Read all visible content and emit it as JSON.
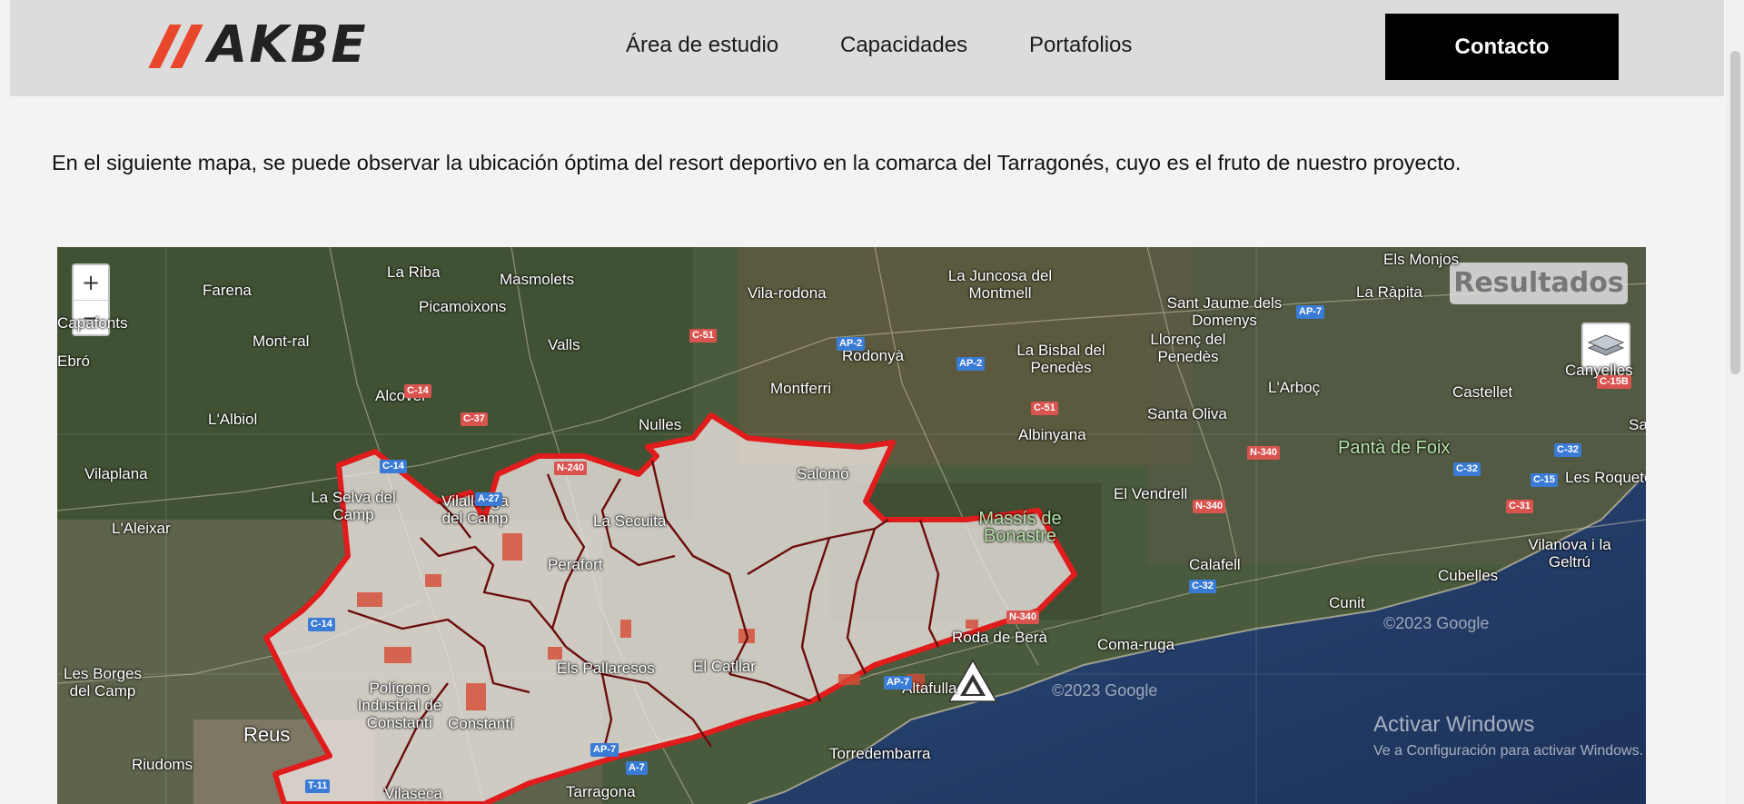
{
  "header": {
    "logo_text": "AKBE",
    "nav": [
      {
        "label": "Área de estudio"
      },
      {
        "label": "Capacidades"
      },
      {
        "label": "Portafolios"
      }
    ],
    "contact_label": "Contacto"
  },
  "intro_text": "En el siguiente mapa, se puede observar la ubicación óptima del resort deportivo en la comarca del Tarragonés, cuyo es el fruto de nuestro proyecto.",
  "map": {
    "zoom_in": "+",
    "zoom_out": "−",
    "results_label": "Resultados",
    "places": [
      "Farena",
      "La Riba",
      "Masmolets",
      "Vila-rodona",
      "La Juncosa del Montmell",
      "Els Monjos",
      "La Ràpita",
      "Capafonts",
      "Picamoixons",
      "Mont-ral",
      "Sant Jaume dels Domenys",
      "Valls",
      "Rodonyà",
      "La Bisbal del Penedès",
      "Llorenç del Penedès",
      "Canyelles",
      "Ebró",
      "Alcover",
      "Montferri",
      "L'Arboç",
      "Castellet",
      "L'Albiol",
      "Nulles",
      "Santa Oliva",
      "Albinyana",
      "Vilaplana",
      "Salomó",
      "El Vendrell",
      "Les Roquetes",
      "La Selva del Camp",
      "Vilallonga del Camp",
      "La Secuita",
      "Vilanova i la Geltrú",
      "L'Aleixar",
      "Cubelles",
      "Perafort",
      "Calafell",
      "Cunit",
      "Roda de Berà",
      "Coma-ruga",
      "Les Borges del Camp",
      "El Catllar",
      "Polígono Industrial de Constantí",
      "Els Pallaresos",
      "Constantí",
      "Reus",
      "Altafulla",
      "Riudoms",
      "Tarragona",
      "Vilaseca",
      "Torredembarra",
      "Sant"
    ],
    "green_labels": [
      "Massís de Bonastre",
      "Pantà de Foix"
    ],
    "roads": [
      "C-51",
      "AP-2",
      "AP-2",
      "AP-7",
      "C-14",
      "C-37",
      "C-51",
      "C-15B",
      "C-14",
      "N-240",
      "A-27",
      "N-340",
      "N-340",
      "C-32",
      "C-32",
      "C-15",
      "C-31",
      "C-32",
      "C-14",
      "N-340",
      "AP-7",
      "AP-7",
      "A-7",
      "T-11"
    ],
    "watermarks": [
      "©2023 Google",
      "©2023 Google"
    ],
    "activate_windows_title": "Activar Windows",
    "activate_windows_sub": "Ve a Configuración para activar Windows."
  }
}
